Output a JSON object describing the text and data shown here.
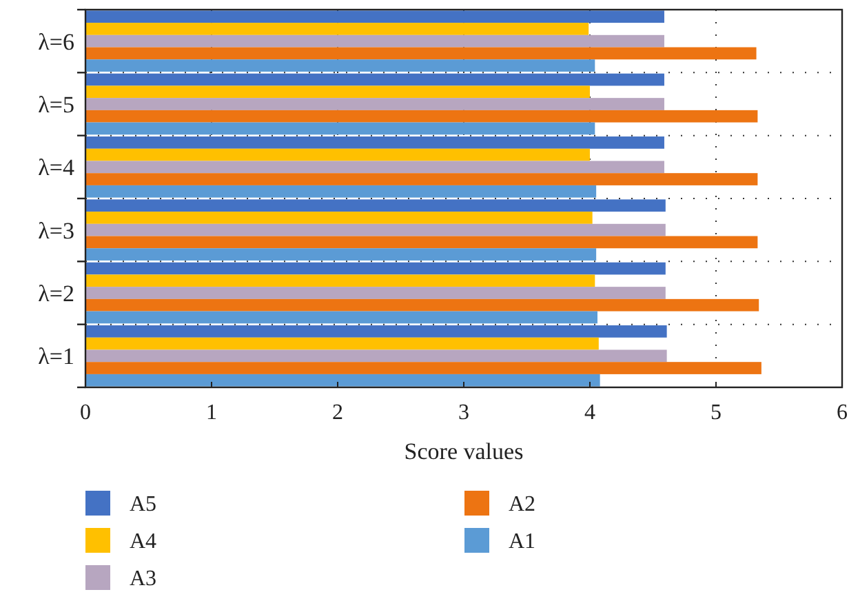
{
  "chart_data": {
    "type": "bar",
    "orientation": "horizontal",
    "xlabel": "Score values",
    "categories": [
      "λ=6",
      "λ=5",
      "λ=4",
      "λ=3",
      "λ=2",
      "λ=1"
    ],
    "series": [
      {
        "name": "A5",
        "color": "#4472c4",
        "values": [
          4.59,
          4.59,
          4.59,
          4.6,
          4.6,
          4.61
        ]
      },
      {
        "name": "A4",
        "color": "#ffc000",
        "values": [
          3.99,
          4.0,
          4.0,
          4.02,
          4.04,
          4.07
        ]
      },
      {
        "name": "A3",
        "color": "#b7a6c0",
        "values": [
          4.59,
          4.59,
          4.59,
          4.6,
          4.6,
          4.61
        ]
      },
      {
        "name": "A2",
        "color": "#ed7412",
        "values": [
          5.32,
          5.33,
          5.33,
          5.33,
          5.34,
          5.36
        ]
      },
      {
        "name": "A1",
        "color": "#5b9bd5",
        "values": [
          4.04,
          4.04,
          4.05,
          4.05,
          4.06,
          4.08
        ]
      }
    ],
    "xlim": [
      0,
      6
    ],
    "xticks": [
      0,
      1,
      2,
      3,
      4,
      5,
      6
    ],
    "grid": true,
    "legend": "bottom"
  }
}
